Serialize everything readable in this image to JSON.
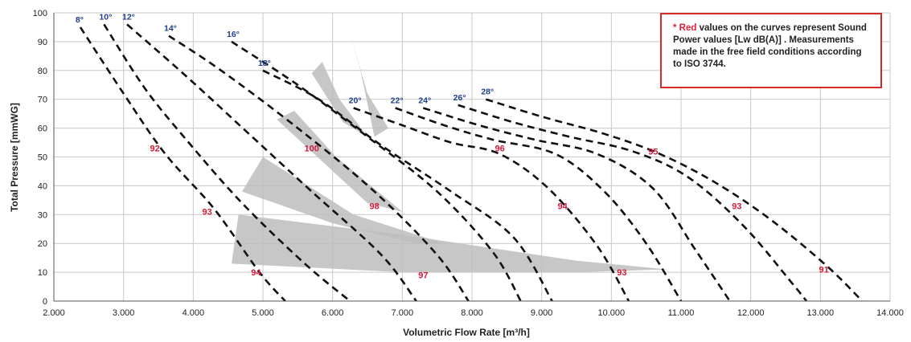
{
  "chart_data": {
    "type": "line",
    "xlabel": "Volumetric Flow Rate  [m³/h]",
    "ylabel": "Total Pressure [mmWG]",
    "xlim": [
      2000,
      14000
    ],
    "ylim": [
      0,
      100
    ],
    "x_ticks": [
      "2.000",
      "3.000",
      "4.000",
      "5.000",
      "6.000",
      "7.000",
      "8.000",
      "9.000",
      "10.000",
      "11.000",
      "12.000",
      "13.000",
      "14.000"
    ],
    "y_ticks": [
      "0",
      "10",
      "20",
      "30",
      "40",
      "50",
      "60",
      "70",
      "80",
      "90",
      "100"
    ],
    "grid": true,
    "series": [
      {
        "name": "8°",
        "points": [
          [
            2380,
            95
          ],
          [
            3000,
            72
          ],
          [
            3600,
            51
          ],
          [
            4300,
            32
          ],
          [
            4950,
            10
          ],
          [
            5320,
            0
          ]
        ]
      },
      {
        "name": "10°",
        "points": [
          [
            2720,
            96
          ],
          [
            3300,
            74
          ],
          [
            3900,
            56
          ],
          [
            4700,
            34
          ],
          [
            5600,
            13
          ],
          [
            6250,
            0
          ]
        ]
      },
      {
        "name": "12°",
        "points": [
          [
            3050,
            96
          ],
          [
            3900,
            78
          ],
          [
            4800,
            58
          ],
          [
            5700,
            38
          ],
          [
            6700,
            16
          ],
          [
            7200,
            0
          ]
        ]
      },
      {
        "name": "14°",
        "points": [
          [
            3650,
            92
          ],
          [
            4400,
            80
          ],
          [
            5500,
            60
          ],
          [
            6600,
            38
          ],
          [
            7500,
            16
          ],
          [
            7950,
            0
          ]
        ]
      },
      {
        "name": "16°",
        "points": [
          [
            4550,
            90
          ],
          [
            5500,
            75
          ],
          [
            6500,
            57
          ],
          [
            7500,
            38
          ],
          [
            8300,
            17
          ],
          [
            8700,
            0
          ]
        ]
      },
      {
        "name": "18°",
        "points": [
          [
            5000,
            80
          ],
          [
            5800,
            70
          ],
          [
            6700,
            54
          ],
          [
            7700,
            38
          ],
          [
            8600,
            22
          ],
          [
            9150,
            0
          ]
        ]
      },
      {
        "name": "20°",
        "points": [
          [
            6300,
            67
          ],
          [
            7000,
            61
          ],
          [
            7700,
            55
          ],
          [
            8400,
            51
          ],
          [
            9100,
            39
          ],
          [
            9800,
            19
          ],
          [
            10250,
            0
          ]
        ]
      },
      {
        "name": "22°",
        "points": [
          [
            6900,
            67
          ],
          [
            7600,
            61
          ],
          [
            8300,
            56
          ],
          [
            9200,
            51
          ],
          [
            9900,
            38
          ],
          [
            10500,
            20
          ],
          [
            11000,
            0
          ]
        ]
      },
      {
        "name": "24°",
        "points": [
          [
            7300,
            67
          ],
          [
            8100,
            61
          ],
          [
            8900,
            56
          ],
          [
            9800,
            51
          ],
          [
            10600,
            39
          ],
          [
            11200,
            18
          ],
          [
            11700,
            0
          ]
        ]
      },
      {
        "name": "26°",
        "points": [
          [
            7800,
            68
          ],
          [
            8600,
            62
          ],
          [
            9400,
            57
          ],
          [
            10300,
            52
          ],
          [
            11100,
            43
          ],
          [
            11900,
            26
          ],
          [
            12600,
            6
          ],
          [
            12800,
            0
          ]
        ]
      },
      {
        "name": "28°",
        "points": [
          [
            8200,
            70
          ],
          [
            9000,
            64
          ],
          [
            9900,
            58
          ],
          [
            10700,
            51
          ],
          [
            11500,
            41
          ],
          [
            12300,
            28
          ],
          [
            13100,
            12
          ],
          [
            13600,
            0
          ]
        ]
      }
    ],
    "annotations": [
      {
        "text": "92",
        "x": 3450,
        "y": 53
      },
      {
        "text": "100",
        "x": 5700,
        "y": 53
      },
      {
        "text": "96",
        "x": 8400,
        "y": 53
      },
      {
        "text": "95",
        "x": 10600,
        "y": 52
      },
      {
        "text": "93",
        "x": 4200,
        "y": 31
      },
      {
        "text": "98",
        "x": 6600,
        "y": 33
      },
      {
        "text": "94",
        "x": 9300,
        "y": 33
      },
      {
        "text": "93",
        "x": 11800,
        "y": 33
      },
      {
        "text": "94",
        "x": 4900,
        "y": 10
      },
      {
        "text": "97",
        "x": 7300,
        "y": 9
      },
      {
        "text": "93",
        "x": 10150,
        "y": 10
      },
      {
        "text": "91",
        "x": 13050,
        "y": 11
      }
    ],
    "shaded_regions": [
      [
        [
          4650,
          30
        ],
        [
          7000,
          23
        ],
        [
          9500,
          14
        ],
        [
          10800,
          11
        ],
        [
          9500,
          10
        ],
        [
          7000,
          10
        ],
        [
          4550,
          13
        ]
      ],
      [
        [
          4700,
          38
        ],
        [
          5000,
          50
        ],
        [
          6300,
          30
        ],
        [
          7600,
          20
        ],
        [
          7200,
          20
        ],
        [
          6000,
          27
        ]
      ],
      [
        [
          5200,
          63
        ],
        [
          5450,
          66
        ],
        [
          6050,
          50
        ],
        [
          7000,
          31
        ],
        [
          6500,
          34
        ]
      ],
      [
        [
          5700,
          79
        ],
        [
          5850,
          83
        ],
        [
          6100,
          70
        ],
        [
          6500,
          57
        ],
        [
          6150,
          62
        ]
      ],
      [
        [
          6500,
          72
        ],
        [
          6250,
          93
        ],
        [
          6400,
          80
        ],
        [
          6600,
          57
        ],
        [
          6800,
          60
        ]
      ]
    ]
  },
  "note": {
    "red_part": "* Red",
    "text": " values on the curves represent Sound Power values [Lw dB(A)] . Measurements made in the free field conditions according to ISO 3744."
  }
}
